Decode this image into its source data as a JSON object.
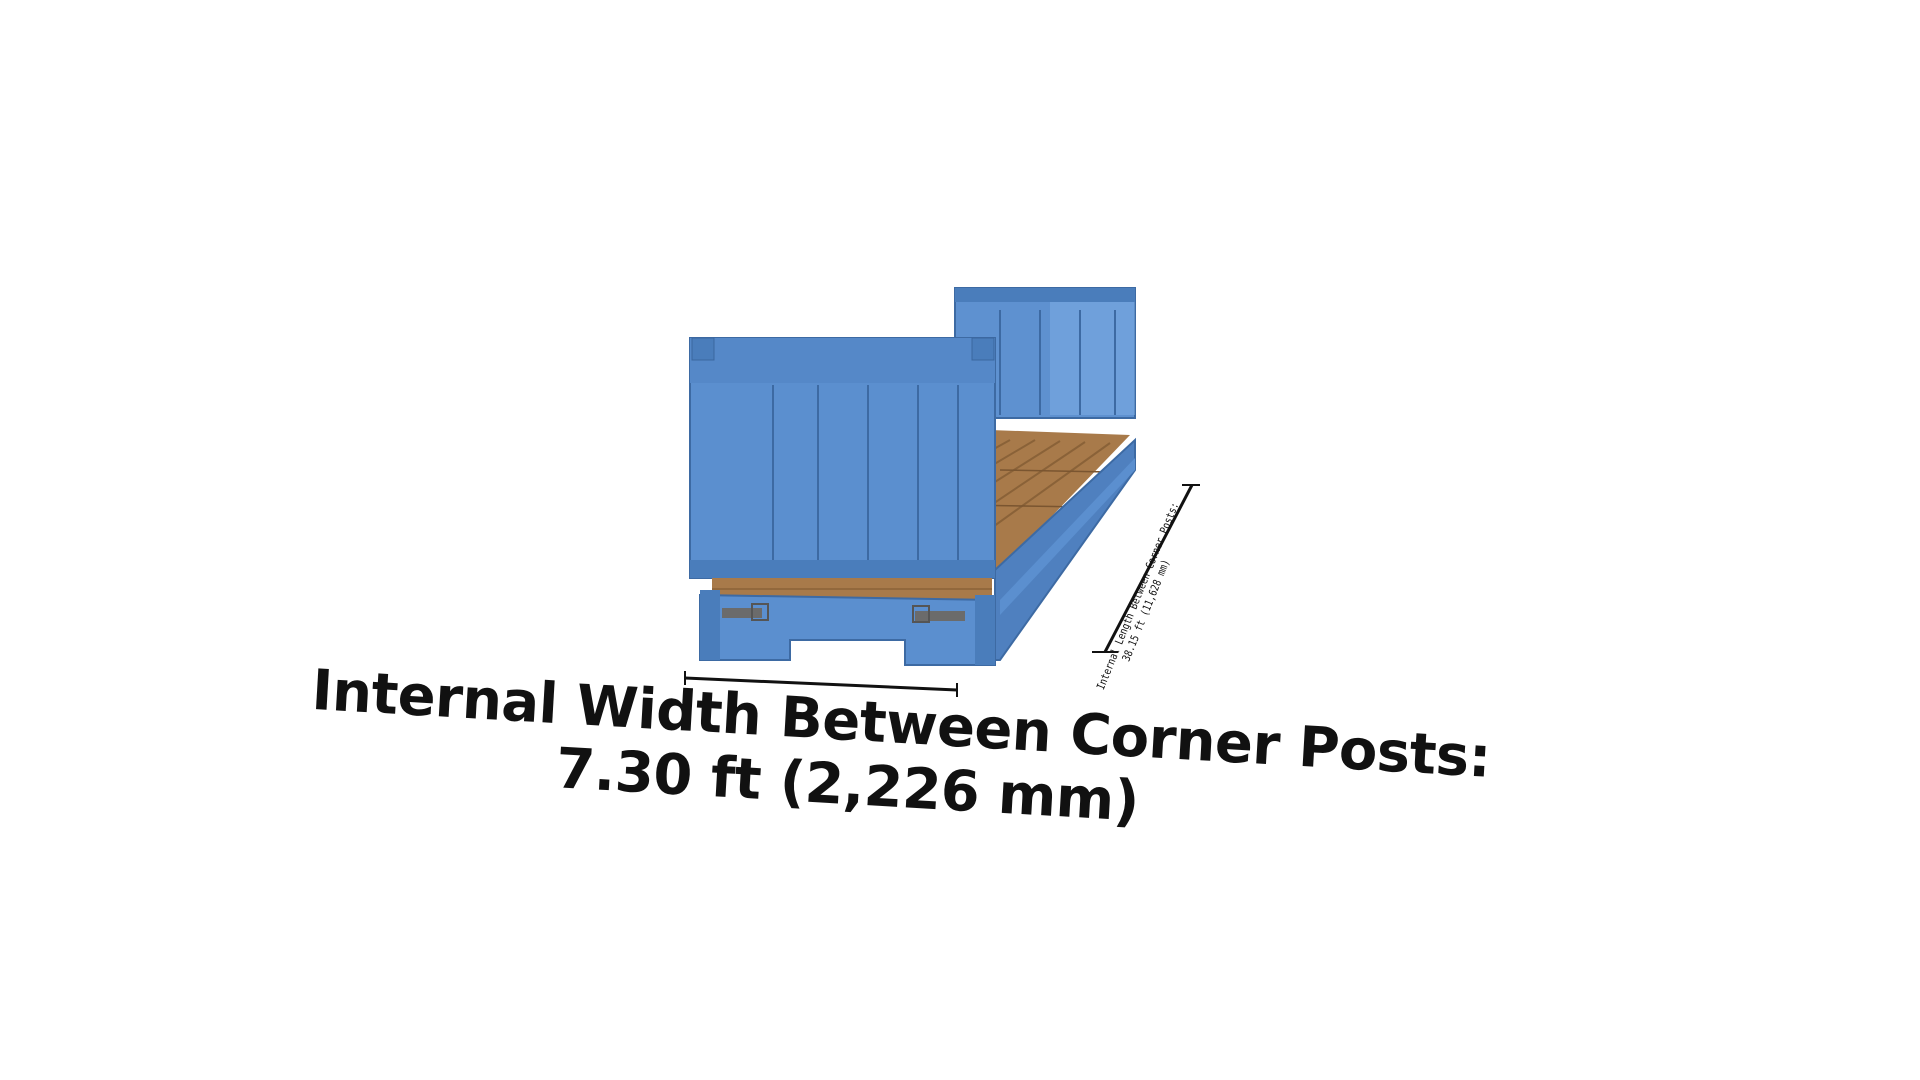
{
  "width_label": {
    "line1": "Internal Width Between Corner Posts:",
    "line2": "7.30 ft (2,226 mm)"
  },
  "length_label": {
    "line1": "Internal Length Between Corner Posts:",
    "line2": "38.15 ft (11,628 mm)"
  },
  "colors": {
    "container_blue": "#5b8fcf",
    "container_dark": "#3f6ea8",
    "floor_wood": "#a87a4a",
    "text": "#111111"
  }
}
